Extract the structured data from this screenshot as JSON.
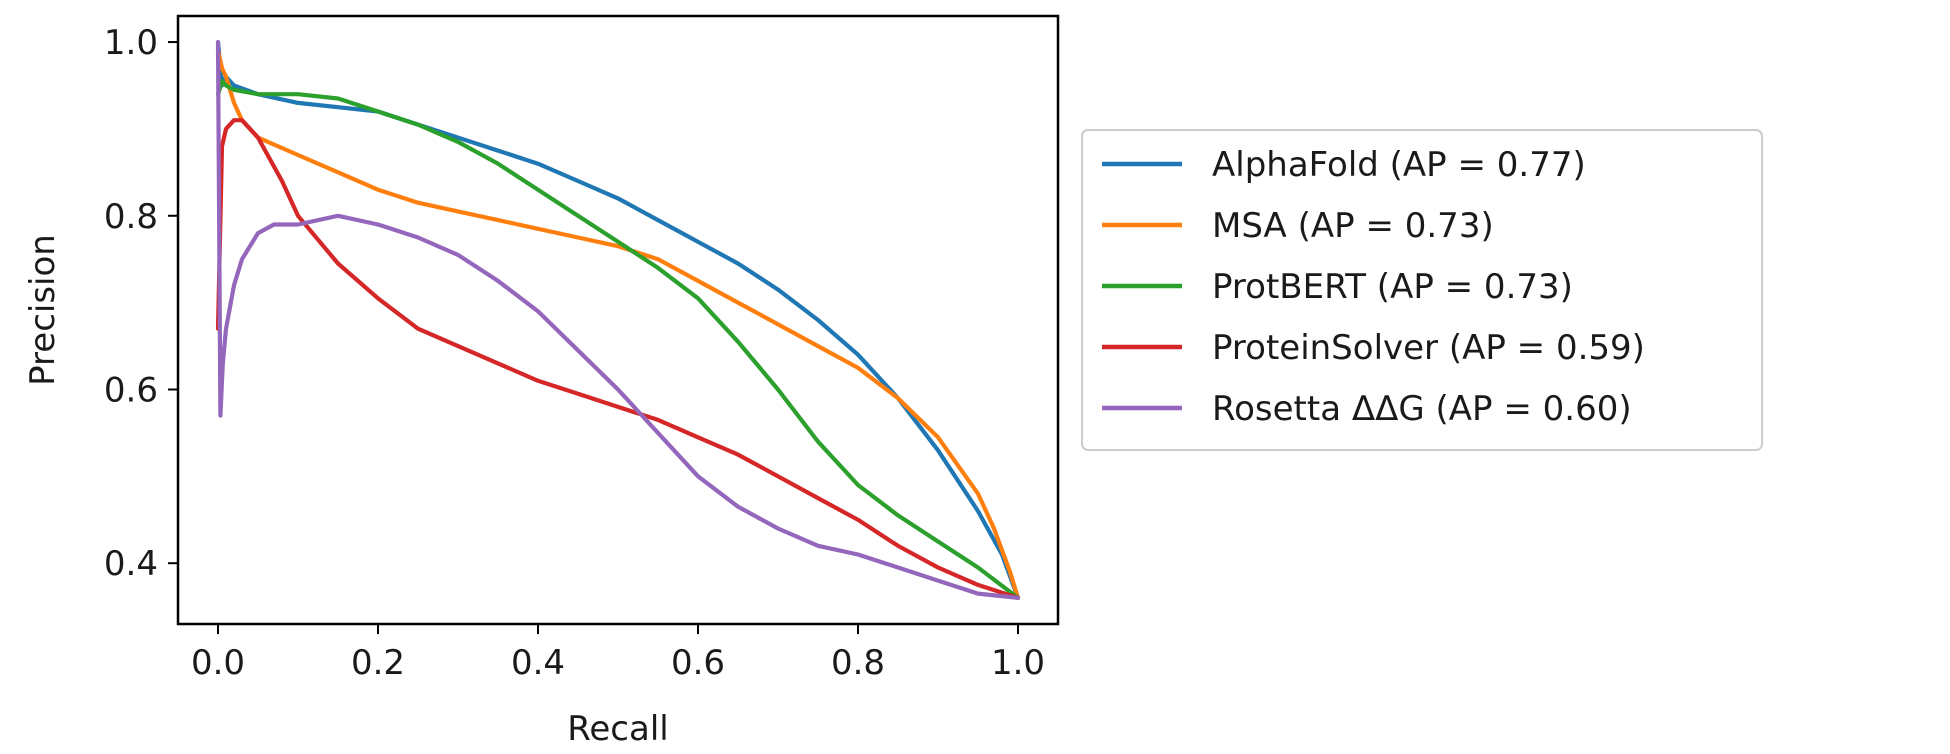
{
  "chart_data": {
    "type": "line",
    "title": "",
    "xlabel": "Recall",
    "ylabel": "Precision",
    "xlim": [
      -0.05,
      1.05
    ],
    "ylim": [
      0.33,
      1.03
    ],
    "xticks": [
      0.0,
      0.2,
      0.4,
      0.6,
      0.8,
      1.0
    ],
    "xtick_labels": [
      "0.0",
      "0.2",
      "0.4",
      "0.6",
      "0.8",
      "1.0"
    ],
    "yticks": [
      0.4,
      0.6,
      0.8,
      1.0
    ],
    "ytick_labels": [
      "0.4",
      "0.6",
      "0.8",
      "1.0"
    ],
    "grid": false,
    "legend_position": "outside-right",
    "series": [
      {
        "name": "AlphaFold (AP = 0.77)",
        "color": "#1f77b4",
        "x": [
          0.0,
          0.005,
          0.01,
          0.02,
          0.05,
          0.1,
          0.15,
          0.2,
          0.25,
          0.3,
          0.35,
          0.4,
          0.45,
          0.5,
          0.55,
          0.6,
          0.65,
          0.7,
          0.75,
          0.8,
          0.85,
          0.9,
          0.95,
          0.98,
          1.0
        ],
        "y": [
          1.0,
          0.95,
          0.96,
          0.95,
          0.94,
          0.93,
          0.925,
          0.92,
          0.905,
          0.89,
          0.875,
          0.86,
          0.84,
          0.82,
          0.795,
          0.77,
          0.745,
          0.715,
          0.68,
          0.64,
          0.59,
          0.53,
          0.46,
          0.41,
          0.36
        ]
      },
      {
        "name": "MSA (AP = 0.73)",
        "color": "#ff7f0e",
        "x": [
          0.0,
          0.005,
          0.01,
          0.02,
          0.03,
          0.05,
          0.1,
          0.15,
          0.2,
          0.25,
          0.3,
          0.35,
          0.4,
          0.45,
          0.5,
          0.55,
          0.6,
          0.65,
          0.7,
          0.75,
          0.8,
          0.85,
          0.9,
          0.95,
          0.97,
          0.99,
          1.0
        ],
        "y": [
          0.99,
          0.97,
          0.96,
          0.93,
          0.91,
          0.89,
          0.87,
          0.85,
          0.83,
          0.815,
          0.805,
          0.795,
          0.785,
          0.775,
          0.765,
          0.75,
          0.725,
          0.7,
          0.675,
          0.65,
          0.625,
          0.59,
          0.545,
          0.48,
          0.44,
          0.39,
          0.36
        ]
      },
      {
        "name": "ProtBERT (AP = 0.73)",
        "color": "#2ca02c",
        "x": [
          0.0,
          0.005,
          0.01,
          0.02,
          0.05,
          0.1,
          0.15,
          0.2,
          0.25,
          0.3,
          0.35,
          0.4,
          0.45,
          0.5,
          0.55,
          0.6,
          0.65,
          0.7,
          0.75,
          0.8,
          0.85,
          0.9,
          0.95,
          1.0
        ],
        "y": [
          0.94,
          0.955,
          0.95,
          0.945,
          0.94,
          0.94,
          0.935,
          0.92,
          0.905,
          0.885,
          0.86,
          0.83,
          0.8,
          0.77,
          0.74,
          0.705,
          0.655,
          0.6,
          0.54,
          0.49,
          0.455,
          0.425,
          0.395,
          0.36
        ]
      },
      {
        "name": "ProteinSolver (AP = 0.59)",
        "color": "#d62728",
        "x": [
          0.0,
          0.005,
          0.01,
          0.02,
          0.03,
          0.05,
          0.08,
          0.1,
          0.15,
          0.2,
          0.25,
          0.3,
          0.35,
          0.4,
          0.45,
          0.5,
          0.55,
          0.6,
          0.65,
          0.7,
          0.75,
          0.8,
          0.85,
          0.9,
          0.95,
          1.0
        ],
        "y": [
          0.67,
          0.88,
          0.9,
          0.91,
          0.91,
          0.89,
          0.84,
          0.8,
          0.745,
          0.705,
          0.67,
          0.65,
          0.63,
          0.61,
          0.595,
          0.58,
          0.565,
          0.545,
          0.525,
          0.5,
          0.475,
          0.45,
          0.42,
          0.395,
          0.375,
          0.36
        ]
      },
      {
        "name": "Rosetta ΔΔG (AP = 0.60)",
        "color": "#9467bd",
        "x": [
          0.0,
          0.003,
          0.006,
          0.01,
          0.02,
          0.03,
          0.05,
          0.07,
          0.1,
          0.15,
          0.2,
          0.25,
          0.3,
          0.35,
          0.4,
          0.45,
          0.5,
          0.55,
          0.6,
          0.65,
          0.7,
          0.75,
          0.8,
          0.85,
          0.9,
          0.95,
          1.0
        ],
        "y": [
          1.0,
          0.57,
          0.63,
          0.67,
          0.72,
          0.75,
          0.78,
          0.79,
          0.79,
          0.8,
          0.79,
          0.775,
          0.755,
          0.725,
          0.69,
          0.645,
          0.6,
          0.55,
          0.5,
          0.465,
          0.44,
          0.42,
          0.41,
          0.395,
          0.38,
          0.365,
          0.36
        ]
      }
    ]
  }
}
